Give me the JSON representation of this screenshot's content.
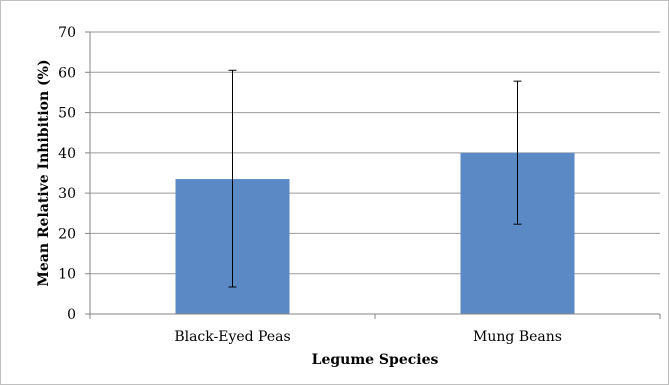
{
  "chart_data": {
    "type": "bar",
    "title": "",
    "xlabel": "Legume Species",
    "ylabel": "Mean Relative Inhibition (%)",
    "categories": [
      "Black-Eyed Peas",
      "Mung Beans"
    ],
    "values": [
      33.5,
      40
    ],
    "error_upper": [
      60.5,
      57.8
    ],
    "error_lower": [
      6.7,
      22.3
    ],
    "ylim": [
      0,
      70
    ],
    "yticks": [
      "0",
      "10",
      "20",
      "30",
      "40",
      "50",
      "60",
      "70"
    ],
    "grid": true,
    "legend": "none",
    "colors": {
      "bar": "#5a89c6",
      "grid": "#9b9b9b",
      "axis": "#868686",
      "error": "#000000"
    }
  }
}
